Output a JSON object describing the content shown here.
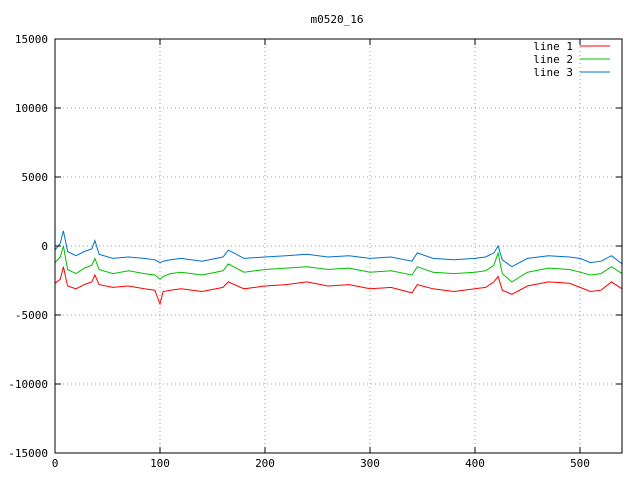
{
  "chart_data": {
    "type": "line",
    "title": "m0520_16",
    "xlabel": "",
    "ylabel": "",
    "xlim": [
      0,
      540
    ],
    "ylim": [
      -15000,
      15000
    ],
    "xticks": [
      0,
      100,
      200,
      300,
      400,
      500
    ],
    "yticks": [
      -15000,
      -10000,
      -5000,
      0,
      5000,
      10000,
      15000
    ],
    "grid": true,
    "legend_position": "top-right",
    "series": [
      {
        "name": "line 1",
        "color": "#ff0000",
        "x": [
          0,
          5,
          8,
          12,
          20,
          28,
          35,
          38,
          42,
          55,
          70,
          85,
          95,
          100,
          103,
          110,
          120,
          140,
          160,
          165,
          180,
          200,
          220,
          240,
          260,
          280,
          300,
          320,
          340,
          345,
          360,
          380,
          400,
          410,
          418,
          422,
          426,
          435,
          450,
          470,
          490,
          500,
          510,
          520,
          530,
          540
        ],
        "y": [
          -2700,
          -2400,
          -1500,
          -2900,
          -3100,
          -2800,
          -2600,
          -2100,
          -2800,
          -3000,
          -2900,
          -3100,
          -3200,
          -4200,
          -3300,
          -3200,
          -3100,
          -3300,
          -3000,
          -2600,
          -3100,
          -2900,
          -2800,
          -2600,
          -2900,
          -2800,
          -3100,
          -3000,
          -3400,
          -2800,
          -3100,
          -3300,
          -3100,
          -3000,
          -2600,
          -2200,
          -3200,
          -3500,
          -2900,
          -2600,
          -2700,
          -3000,
          -3300,
          -3200,
          -2600,
          -3100
        ]
      },
      {
        "name": "line 2",
        "color": "#00c000",
        "x": [
          0,
          5,
          8,
          12,
          20,
          28,
          35,
          38,
          42,
          55,
          70,
          85,
          95,
          100,
          103,
          110,
          120,
          140,
          160,
          165,
          180,
          200,
          220,
          240,
          260,
          280,
          300,
          320,
          340,
          345,
          360,
          380,
          400,
          410,
          418,
          422,
          426,
          435,
          450,
          470,
          490,
          500,
          510,
          520,
          530,
          540
        ],
        "y": [
          -1200,
          -800,
          0,
          -1700,
          -2000,
          -1600,
          -1400,
          -900,
          -1700,
          -2000,
          -1800,
          -2000,
          -2100,
          -2400,
          -2200,
          -2000,
          -1900,
          -2100,
          -1800,
          -1300,
          -1900,
          -1700,
          -1600,
          -1500,
          -1700,
          -1600,
          -1900,
          -1800,
          -2100,
          -1500,
          -1900,
          -2000,
          -1900,
          -1800,
          -1400,
          -500,
          -2000,
          -2600,
          -1900,
          -1600,
          -1700,
          -1900,
          -2100,
          -2000,
          -1500,
          -2000
        ]
      },
      {
        "name": "line 3",
        "color": "#0070d0",
        "x": [
          0,
          5,
          8,
          12,
          20,
          28,
          35,
          38,
          42,
          55,
          70,
          85,
          95,
          100,
          103,
          110,
          120,
          140,
          160,
          165,
          180,
          200,
          220,
          240,
          260,
          280,
          300,
          320,
          340,
          345,
          360,
          380,
          400,
          410,
          418,
          422,
          426,
          435,
          450,
          470,
          490,
          500,
          510,
          520,
          530,
          540
        ],
        "y": [
          -300,
          200,
          1100,
          -400,
          -700,
          -400,
          -200,
          400,
          -600,
          -900,
          -800,
          -900,
          -1000,
          -1200,
          -1100,
          -1000,
          -900,
          -1100,
          -800,
          -300,
          -900,
          -800,
          -700,
          -600,
          -800,
          -700,
          -900,
          -800,
          -1100,
          -500,
          -900,
          -1000,
          -900,
          -800,
          -500,
          0,
          -1000,
          -1500,
          -900,
          -700,
          -800,
          -900,
          -1200,
          -1100,
          -700,
          -1300
        ]
      }
    ]
  }
}
